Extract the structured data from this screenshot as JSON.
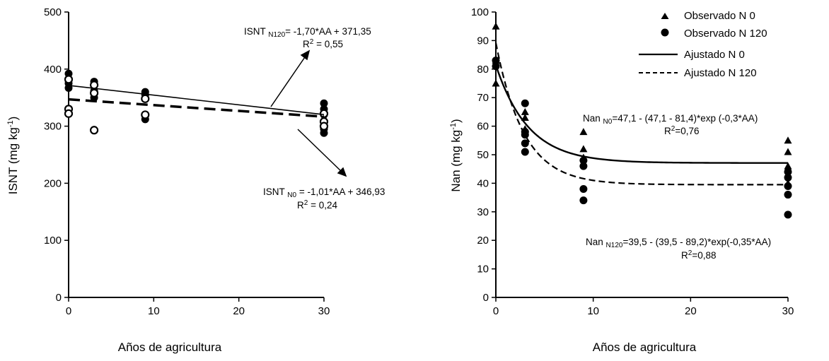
{
  "chart_data": [
    {
      "type": "scatter",
      "xlabel": "Años de agricultura",
      "ylabel": "ISNT (mg kg-1)",
      "xlim": [
        0,
        30
      ],
      "ylim": [
        0,
        500
      ],
      "xticks": [
        0,
        10,
        20,
        30
      ],
      "yticks": [
        0,
        100,
        200,
        300,
        400,
        500
      ],
      "series": [
        {
          "marker": "filled-circle",
          "x": [
            0,
            0,
            0,
            0,
            3,
            3,
            3,
            9,
            9,
            9,
            30,
            30,
            30,
            30,
            30
          ],
          "y": [
            392,
            380,
            375,
            367,
            378,
            362,
            350,
            360,
            355,
            312,
            340,
            330,
            320,
            295,
            288
          ]
        },
        {
          "marker": "open-circle",
          "x": [
            0,
            0,
            0,
            3,
            3,
            3,
            9,
            9,
            30,
            30,
            30
          ],
          "y": [
            382,
            330,
            322,
            372,
            358,
            293,
            348,
            320,
            322,
            308,
            300
          ]
        },
        {
          "line": "solid",
          "x": [
            0,
            30
          ],
          "y": [
            371.35,
            320.35
          ]
        },
        {
          "line": "dashed",
          "x": [
            0,
            30
          ],
          "y": [
            346.93,
            316.63
          ]
        }
      ],
      "annotations": [
        {
          "lines": [
            "ISNT N120= -1,70*AA + 371,35",
            "R2 = 0,55"
          ]
        },
        {
          "lines": [
            "ISNT N0 = -1,01*AA + 346,93",
            "R2 = 0,24"
          ]
        }
      ]
    },
    {
      "type": "scatter",
      "xlabel": "Años de agricultura",
      "ylabel": "Nan (mg kg-1)",
      "xlim": [
        0,
        30
      ],
      "ylim": [
        0,
        100
      ],
      "xticks": [
        0,
        10,
        20,
        30
      ],
      "yticks": [
        0,
        10,
        20,
        30,
        40,
        50,
        60,
        70,
        80,
        90,
        100
      ],
      "legend": {
        "position": "top-right",
        "entries": [
          "Observado N 0",
          "Observado N 120",
          "Ajustado N 0",
          "Ajustado N 120"
        ]
      },
      "series": [
        {
          "name": "Observado N 0",
          "marker": "triangle",
          "x": [
            0,
            0,
            0,
            3,
            3,
            3,
            9,
            9,
            9,
            30,
            30,
            30,
            30
          ],
          "y": [
            95,
            83,
            75,
            65,
            63,
            59,
            58,
            52,
            49,
            55,
            51,
            46,
            40
          ]
        },
        {
          "name": "Observado N 120",
          "marker": "filled-circle",
          "x": [
            0,
            0,
            3,
            3,
            3,
            3,
            3,
            9,
            9,
            9,
            9,
            30,
            30,
            30,
            30,
            30
          ],
          "y": [
            83,
            81,
            68,
            58,
            54,
            51,
            57,
            48,
            46,
            38,
            34,
            44,
            42,
            39,
            36,
            29
          ]
        },
        {
          "name": "Ajustado N 0",
          "line": "solid",
          "model": "47.1 - (47.1 - 81.4)*exp(-0.3*AA)"
        },
        {
          "name": "Ajustado N 120",
          "line": "dashed",
          "model": "39.5 - (39.5 - 89.2)*exp(-0.35*AA)"
        }
      ],
      "annotations": [
        {
          "lines": [
            "Nan N0=47,1 - (47,1 - 81,4)*exp (-0,3*AA)",
            "R2=0,76"
          ]
        },
        {
          "lines": [
            "Nan N120=39,5 - (39,5 - 89,2)*exp(-0,35*AA)",
            "R2=0,88"
          ]
        }
      ]
    }
  ],
  "text": {
    "left_xlabel": "Años de agricultura",
    "left_ylabel_main": "ISNT (mg kg",
    "left_ylabel_sup": "-1",
    "left_ylabel_end": ")",
    "right_xlabel": "Años de agricultura",
    "right_ylabel_main": "Nan (mg kg",
    "right_ylabel_sup": "-1",
    "right_ylabel_end": ")",
    "ann_isnt_n120_a": "ISNT ",
    "ann_isnt_n120_sub": "N120",
    "ann_isnt_n120_b": "= -1,70*AA + 371,35",
    "ann_isnt_n120_r2a": "R",
    "ann_isnt_n120_r2sup": "2",
    "ann_isnt_n120_r2b": " = 0,55",
    "ann_isnt_n0_a": "ISNT ",
    "ann_isnt_n0_sub": "N0",
    "ann_isnt_n0_b": " = -1,01*AA + 346,93",
    "ann_isnt_n0_r2a": "R",
    "ann_isnt_n0_r2sup": "2",
    "ann_isnt_n0_r2b": " = 0,24",
    "ann_nan_n0_a": "Nan ",
    "ann_nan_n0_sub": "N0",
    "ann_nan_n0_b": "=47,1 - (47,1 - 81,4)*exp (-0,3*AA)",
    "ann_nan_n0_r2a": "R",
    "ann_nan_n0_r2sup": "2",
    "ann_nan_n0_r2b": "=0,76",
    "ann_nan_n120_a": "Nan ",
    "ann_nan_n120_sub": "N120",
    "ann_nan_n120_b": "=39,5 - (39,5 - 89,2)*exp(-0,35*AA)",
    "ann_nan_n120_r2a": "R",
    "ann_nan_n120_r2sup": "2",
    "ann_nan_n120_r2b": "=0,88",
    "legend_1": "Observado N 0",
    "legend_2": "Observado N 120",
    "legend_3": "Ajustado N 0",
    "legend_4": "Ajustado N 120"
  }
}
